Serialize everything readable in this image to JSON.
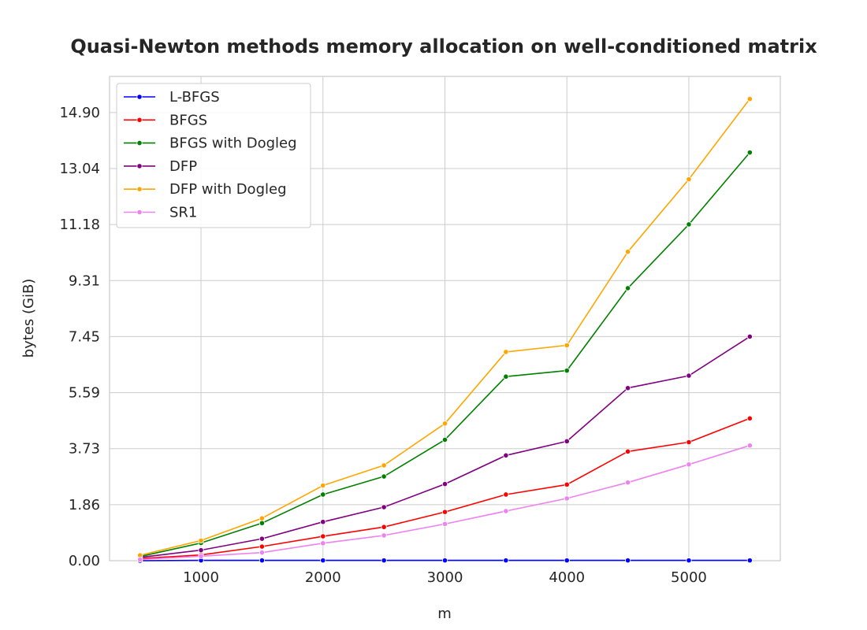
{
  "chart_data": {
    "type": "line",
    "title": "Quasi-Newton methods memory allocation on well-conditioned matrix",
    "xlabel": "m",
    "ylabel": "bytes (GiB)",
    "xlim": [
      250,
      5750
    ],
    "ylim": [
      0,
      16.1
    ],
    "xticks": [
      1000,
      2000,
      3000,
      4000,
      5000
    ],
    "xtick_labels": [
      "1000",
      "2000",
      "3000",
      "4000",
      "5000"
    ],
    "yticks": [
      0,
      1.862,
      3.725,
      5.587,
      7.45,
      9.312,
      11.175,
      13.037,
      14.9
    ],
    "ytick_labels": [
      "0.00",
      "1.86",
      "3.73",
      "5.59",
      "7.45",
      "9.31",
      "11.18",
      "13.04",
      "14.90"
    ],
    "grid": true,
    "legend_position": "top-left",
    "x": [
      500,
      1000,
      1500,
      2000,
      2500,
      3000,
      3500,
      4000,
      4500,
      5000,
      5500
    ],
    "series": [
      {
        "name": "L-BFGS",
        "color": "#0000ff",
        "values": [
          0.0,
          0.01,
          0.01,
          0.01,
          0.01,
          0.01,
          0.01,
          0.01,
          0.01,
          0.01,
          0.01
        ]
      },
      {
        "name": "BFGS",
        "color": "#ff0000",
        "values": [
          0.07,
          0.19,
          0.47,
          0.81,
          1.12,
          1.62,
          2.2,
          2.53,
          3.63,
          3.94,
          4.73
        ]
      },
      {
        "name": "BFGS with Dogleg",
        "color": "#008000",
        "values": [
          0.14,
          0.59,
          1.25,
          2.2,
          2.8,
          4.02,
          6.12,
          6.32,
          9.06,
          11.18,
          13.57
        ]
      },
      {
        "name": "DFP",
        "color": "#800080",
        "values": [
          0.11,
          0.35,
          0.73,
          1.29,
          1.78,
          2.55,
          3.5,
          3.97,
          5.74,
          6.15,
          7.45
        ]
      },
      {
        "name": "DFP with Dogleg",
        "color": "#ffa500",
        "values": [
          0.18,
          0.67,
          1.41,
          2.5,
          3.17,
          4.56,
          6.94,
          7.16,
          10.27,
          12.68,
          15.35
        ]
      },
      {
        "name": "SR1",
        "color": "#ee82ee",
        "values": [
          0.04,
          0.15,
          0.27,
          0.58,
          0.84,
          1.22,
          1.65,
          2.07,
          2.6,
          3.2,
          3.83
        ]
      }
    ]
  }
}
